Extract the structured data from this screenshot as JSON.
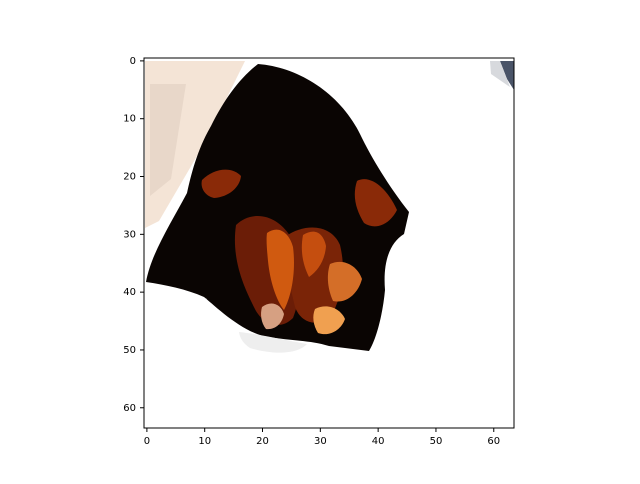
{
  "chart_data": {
    "type": "heatmap",
    "image_size": [
      64,
      64
    ],
    "xlim": [
      -0.5,
      63.5
    ],
    "ylim": [
      63.5,
      -0.5
    ],
    "y_axis_inverted": true,
    "grid": false,
    "x_ticks": [
      0,
      10,
      20,
      30,
      40,
      50,
      60
    ],
    "y_ticks": [
      0,
      10,
      20,
      30,
      40,
      50,
      60
    ],
    "x_tick_labels": [
      "0",
      "10",
      "20",
      "30",
      "40",
      "50",
      "60"
    ],
    "y_tick_labels": [
      "0",
      "10",
      "20",
      "30",
      "40",
      "50",
      "60"
    ],
    "colors": {
      "background": "#ffffff",
      "dark": "#0a0503",
      "dark_brown": "#2a0c04",
      "rust": "#8a2a08",
      "orange": "#d05a10",
      "light_orange": "#f0a050",
      "cream": "#f4e4d6",
      "shadow": "#ece0d6",
      "corner": "#4a5468"
    }
  }
}
